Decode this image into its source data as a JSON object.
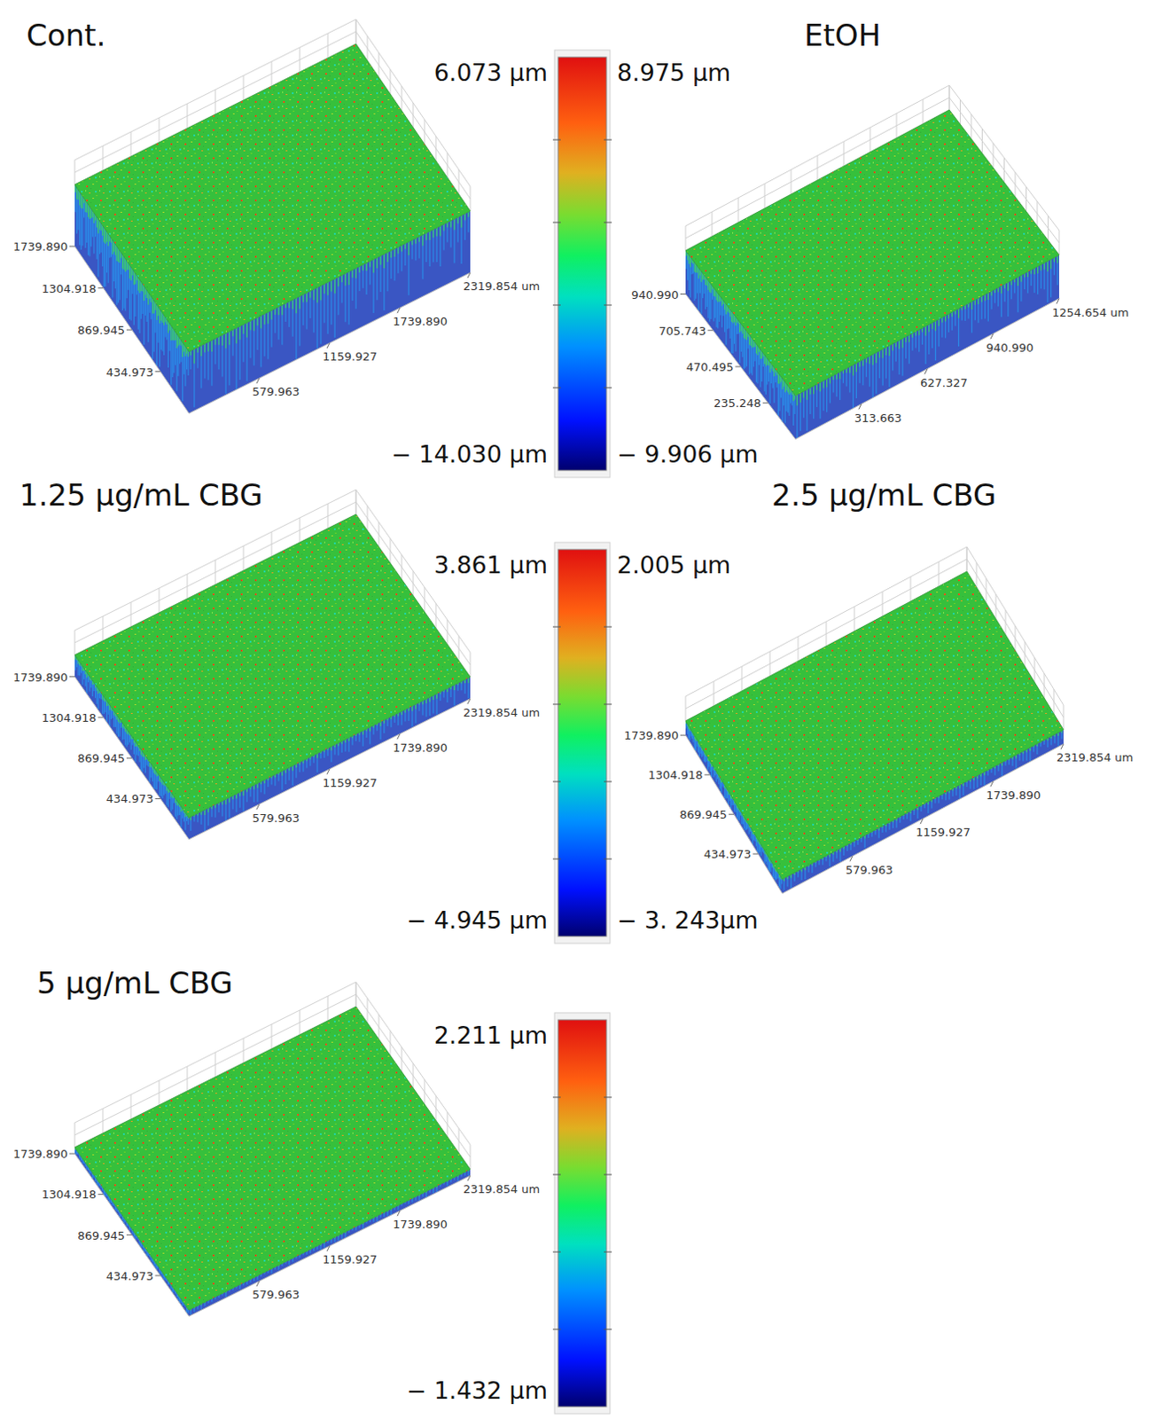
{
  "chart_data": [
    {
      "type": "surface",
      "title": "Cont.",
      "xlim": [
        0,
        2319.854
      ],
      "ylim": [
        0,
        1739.89
      ],
      "xticks": [
        579.963,
        1159.927,
        {
          "value": 1739.89,
          "label": "1739.890"
        },
        {
          "value": 2319.854,
          "label": "2319.854 um"
        }
      ],
      "yticks": [
        434.973,
        869.945,
        1304.918,
        {
          "value": 1739.89,
          "label": "1739.890"
        }
      ],
      "colorbar": {
        "range": [
          -14.03,
          6.073
        ],
        "ticks": [
          {
            "value": -14.03,
            "label": "− 14.030 µm"
          },
          {
            "value": 6.073,
            "label": "6.073 µm"
          }
        ]
      }
    },
    {
      "type": "surface",
      "title": "EtOH",
      "xlim": [
        0,
        1254.654
      ],
      "ylim": [
        0,
        940.99
      ],
      "xticks": [
        313.663,
        627.327,
        {
          "value": 940.99,
          "label": "940.990"
        },
        {
          "value": 1254.654,
          "label": "1254.654 um"
        }
      ],
      "yticks": [
        235.248,
        470.495,
        705.743,
        {
          "value": 940.99,
          "label": "940.990"
        }
      ],
      "colorbar": {
        "range": [
          -9.906,
          8.975
        ],
        "ticks": [
          {
            "value": -9.906,
            "label": "− 9.906 µm"
          },
          {
            "value": 8.975,
            "label": "8.975 µm"
          }
        ]
      }
    },
    {
      "type": "surface",
      "title": "1.25 µg/mL CBG",
      "xlim": [
        0,
        2319.854
      ],
      "ylim": [
        0,
        1739.89
      ],
      "xticks": [
        579.963,
        1159.927,
        {
          "value": 1739.89,
          "label": "1739.890"
        },
        {
          "value": 2319.854,
          "label": "2319.854 um"
        }
      ],
      "yticks": [
        434.973,
        869.945,
        1304.918,
        {
          "value": 1739.89,
          "label": "1739.890"
        }
      ],
      "colorbar": {
        "range": [
          -4.945,
          3.861
        ],
        "ticks": [
          {
            "value": -4.945,
            "label": "− 4.945 µm"
          },
          {
            "value": 3.861,
            "label": "3.861 µm"
          }
        ]
      }
    },
    {
      "type": "surface",
      "title": "2.5 µg/mL CBG",
      "xlim": [
        0,
        2319.854
      ],
      "ylim": [
        0,
        1739.89
      ],
      "xticks": [
        579.963,
        1159.927,
        {
          "value": 1739.89,
          "label": "1739.890"
        },
        {
          "value": 2319.854,
          "label": "2319.854 um"
        }
      ],
      "yticks": [
        434.973,
        869.945,
        1304.918,
        {
          "value": 1739.89,
          "label": "1739.890"
        }
      ],
      "colorbar": {
        "range": [
          -3.243,
          2.005
        ],
        "ticks": [
          {
            "value": -3.243,
            "label": "− 3. 243µm"
          },
          {
            "value": 2.005,
            "label": "2.005 µm"
          }
        ]
      }
    },
    {
      "type": "surface",
      "title": "5 µg/mL CBG",
      "xlim": [
        0,
        2319.854
      ],
      "ylim": [
        0,
        1739.89
      ],
      "xticks": [
        579.963,
        1159.927,
        {
          "value": 1739.89,
          "label": "1739.890"
        },
        {
          "value": 2319.854,
          "label": "2319.854 um"
        }
      ],
      "yticks": [
        434.973,
        869.945,
        1304.918,
        {
          "value": 1739.89,
          "label": "1739.890"
        }
      ],
      "colorbar": {
        "range": [
          -1.432,
          2.211
        ],
        "ticks": [
          {
            "value": -1.432,
            "label": "− 1.432 µm"
          },
          {
            "value": 2.211,
            "label": "2.211 µm"
          }
        ]
      }
    }
  ]
}
